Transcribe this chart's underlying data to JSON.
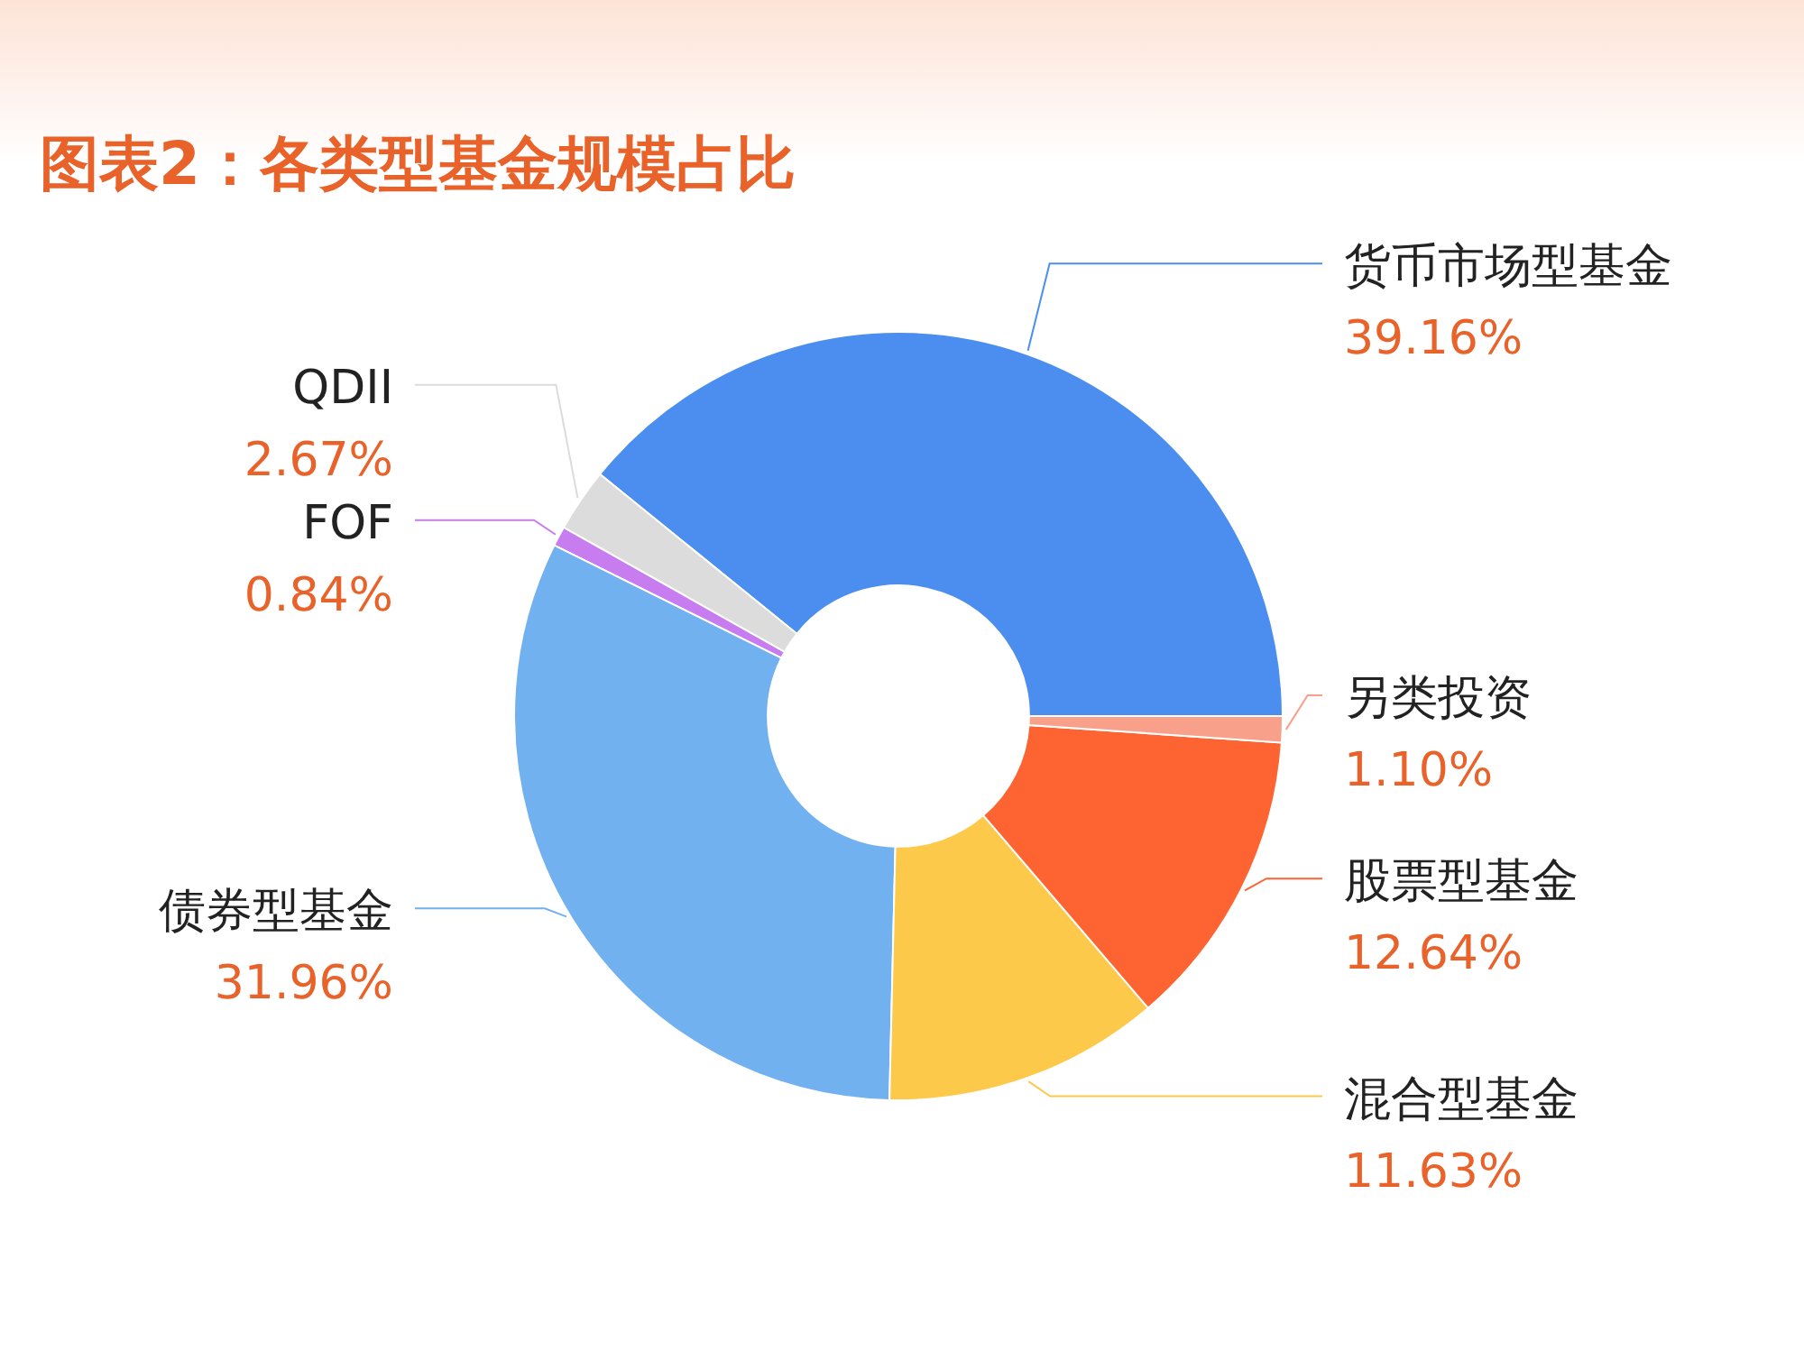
{
  "chart_data": {
    "type": "donut",
    "title": "图表2：各类型基金规模占比",
    "categories": [
      "货币市场型基金",
      "QDII",
      "FOF",
      "债券型基金",
      "混合型基金",
      "股票型基金",
      "另类投资"
    ],
    "values": [
      39.16,
      2.67,
      0.84,
      31.96,
      11.63,
      12.64,
      1.1
    ],
    "colors": [
      "#4b8ef0",
      "#dcdcdc",
      "#c77cf0",
      "#72b1f0",
      "#fdc94a",
      "#fd6431",
      "#f9a08a"
    ],
    "value_labels": [
      "39.16%",
      "2.67%",
      "0.84%",
      "31.96%",
      "11.63%",
      "12.64%",
      "1.10%"
    ]
  }
}
